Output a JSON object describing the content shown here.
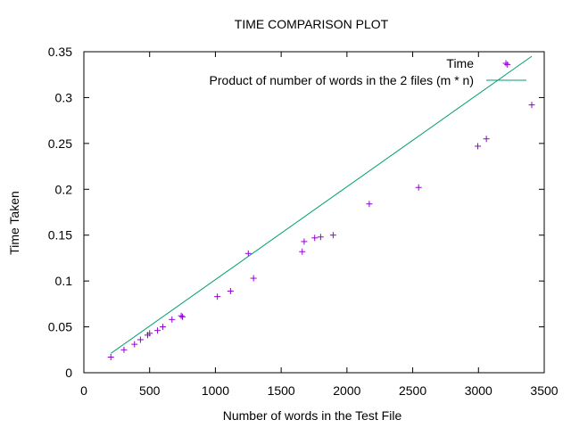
{
  "chart_data": {
    "type": "scatter",
    "title": "TIME COMPARISON PLOT",
    "xlabel": "Number of words in the Test File",
    "ylabel": "Time Taken",
    "xlim": [
      0,
      3500
    ],
    "ylim": [
      0,
      0.35
    ],
    "x_ticks": [
      0,
      500,
      1000,
      1500,
      2000,
      2500,
      3000,
      3500
    ],
    "y_ticks": [
      0,
      0.05,
      0.1,
      0.15,
      0.2,
      0.25,
      0.3,
      0.35
    ],
    "grid": false,
    "legend_position": "top-right",
    "series": [
      {
        "name": "Time",
        "kind": "points",
        "marker": "plus",
        "color": "#9400d3",
        "x": [
          205,
          305,
          385,
          430,
          485,
          500,
          560,
          600,
          670,
          740,
          750,
          1015,
          1115,
          1250,
          1290,
          1660,
          1675,
          1755,
          1800,
          1895,
          2170,
          2545,
          2995,
          3060,
          3220,
          3405
        ],
        "y": [
          0.017,
          0.025,
          0.031,
          0.036,
          0.041,
          0.043,
          0.046,
          0.05,
          0.058,
          0.062,
          0.061,
          0.083,
          0.089,
          0.13,
          0.103,
          0.132,
          0.143,
          0.147,
          0.148,
          0.15,
          0.184,
          0.202,
          0.247,
          0.255,
          0.336,
          0.292
        ]
      },
      {
        "name": "Product of number of words in the 2 files (m * n)",
        "kind": "line",
        "color": "#009e73",
        "x": [
          205,
          3405
        ],
        "y": [
          0.021,
          0.345
        ]
      }
    ]
  }
}
